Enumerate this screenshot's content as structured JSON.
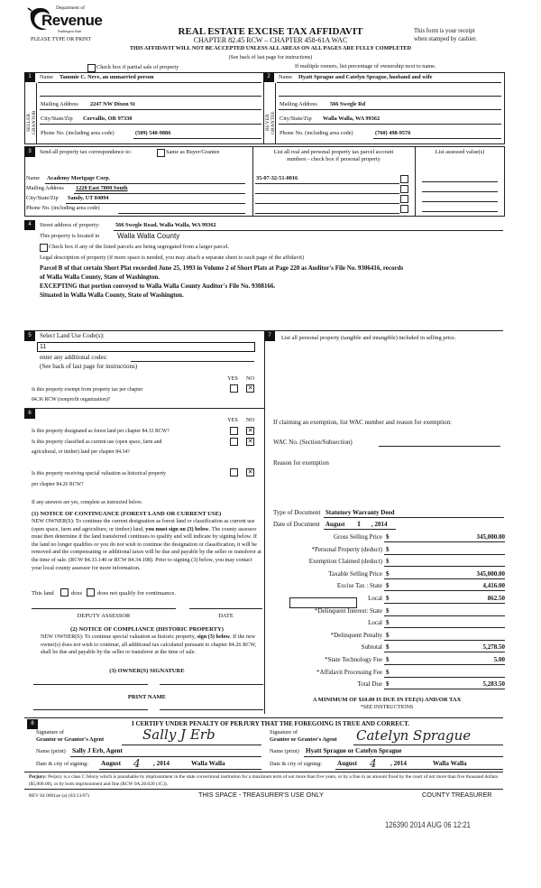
{
  "header": {
    "dept": "Department of",
    "logo_word": "Revenue",
    "logo_tag": "Washington State",
    "please": "PLEASE TYPE OR PRINT",
    "title": "REAL ESTATE EXCISE TAX AFFIDAVIT",
    "chapter": "CHAPTER 82.45 RCW – CHAPTER 458-61A WAC",
    "warning": "THIS AFFIDAVIT WILL NOT BE ACCEPTED UNLESS ALL AREAS ON ALL PAGES ARE FULLY COMPLETED",
    "see_back": "(See back of last page for instructions)",
    "receipt1": "This form is your receipt",
    "receipt2": "when stamped by cashier.",
    "partial_sale": "Check box if partial sale of property",
    "multiple_owners": "If multiple owners, list percentage of ownership next to name."
  },
  "seller": {
    "num": "1",
    "side": "SELLER GRANTOR",
    "name_label": "Name",
    "name": "Tammie C. Neve, an unmarried person",
    "mail_label": "Mailing Address",
    "mail": "2247 NW Dixon St",
    "city_label": "City/State/Zip",
    "city": "Corvallis, OR  97330",
    "phone_label": "Phone No. (including area code)",
    "phone": "(509) 540-9886"
  },
  "buyer": {
    "num": "2",
    "side": "BUYER GRANTEE",
    "name_label": "Name",
    "name": "Hyatt Sprague and Catelyn Sprague, husband and wife",
    "mail_label": "Mailing Address",
    "mail": "566 Swegle Rd",
    "city_label": "City/State/Zip",
    "city": "Walla Walla, WA  99362",
    "phone_label": "Phone No. (including area code)",
    "phone": "(760) 498-9576"
  },
  "correspondence": {
    "num": "3",
    "label": "Send all property tax correspondence to:",
    "same_as": "Same as Buyer/Grantee",
    "name_label": "Name",
    "name": "Academy Mortgage Corp.",
    "mail_label": "Mailing Address",
    "mail": "1220 East 7800 South",
    "city_label": "City/State/Zip",
    "city": "Sandy, UT  84094",
    "phone_label": "Phone No. (including area code)",
    "parcels_header1": "List all real and personal property tax parcel account",
    "parcels_header2": "numbers - check box if personal property",
    "parcels": [
      "35-07-32-51-0016"
    ],
    "assessed_header": "List assessed value(s)"
  },
  "property": {
    "num": "4",
    "street_label": "Street address of property:",
    "street": "566 Swegle Road, Walla Walla, WA  99362",
    "located_label": "This property is located in",
    "county": "Walla Walla County",
    "segregated": "Check box if any of the listed parcels are being segregated from a larger parcel.",
    "legal_label": "Legal description of property (if more space is needed, you may attach a separate sheet to each page of the affidavit)",
    "legal": [
      "Parcel B of that certain Short Plat recorded June 25, 1993 in Volume 2 of Short Plats at Page 220 as Auditor's File No. 9306416, records",
      "of Walla Walla County, State of Washington.",
      "EXCEPTING that portion conveyed to Walla Walla County Auditor's File No. 9308166.",
      "Situated in Walla Walla County, State of Washington."
    ]
  },
  "land_use": {
    "num": "5",
    "label": "Select Land Use Code(s):",
    "code": "11",
    "additional": "enter any additional codes:",
    "see_back": "(See back of last page for instructions)",
    "yes": "YES",
    "no": "NO",
    "q1a": "Is this property exempt from property tax per chapter",
    "q1b": "84.36 RCW (nonprofit organization)?",
    "q1_answer": "no"
  },
  "section6": {
    "num": "6",
    "yes": "YES",
    "no": "NO",
    "q1": "Is this property designated as forest land per chapter 84.33 RCW?",
    "q2a": "Is this property classified as current use (open space, farm and",
    "q2b": "agricultural, or timber) land per chapter 84.34?",
    "q3a": "Is this property receiving special valuation as historical property",
    "q3b": "per chapter 84.26 RCW?",
    "answers": [
      "no",
      "no",
      "no"
    ],
    "if_yes": "If any answers are yes, complete as instructed below."
  },
  "notice1": {
    "title": "(1) NOTICE OF CONTINUANCE (FOREST LAND OR CURRENT USE)",
    "body_a": "NEW OWNER(S): To continue the current designation as forest land or classification as current use (open space, farm and agriculture, or timber) land, ",
    "body_bold": "you must sign on (3) below",
    "body_b": ". The county assessor must then determine if the land transferred continues to qualify and will indicate by signing below. If the land no longer qualifies or you do not wish to continue the designation or classification, it will be removed and the compensating or additional taxes will be due and payable by the seller or transferor at the time of sale. (RCW 84.33.140 or RCW 84.34.108). Prior to signing (3) below, you may contact your local county assessor for more information.",
    "this_land": "This land",
    "does": "does",
    "does_not": "does not  qualify for continuance.",
    "deputy": "DEPUTY ASSESSOR",
    "date": "DATE"
  },
  "notice2": {
    "title": "(2) NOTICE OF COMPLIANCE (HISTORIC PROPERTY)",
    "body_a": "NEW OWNER(S): To continue special valuation as historic property, ",
    "body_bold": "sign (3) below",
    "body_b": ". If the new owner(s) does not wish to continue, all additional tax calculated pursuant to chapter 84.26 RCW, shall be due and payable by the seller or transferor at the time of sale.",
    "owner_sig": "(3) OWNER(S) SIGNATURE",
    "print_name": "PRINT NAME"
  },
  "section7": {
    "num": "7",
    "text": "List all personal property (tangible and intangible) included in selling price."
  },
  "exemption": {
    "heading": "If claiming an exemption, list WAC number and reason for exemption:",
    "wac_label": "WAC No. (Section/Subsection)",
    "reason_label": "Reason for exemption"
  },
  "document": {
    "type_label": "Type of Document",
    "type": "Statutory Warranty Deed",
    "date_label": "Date of Document",
    "date_month": "August",
    "date_day": "1",
    "date_year": ", 2014",
    "amounts": [
      {
        "label": "Gross Selling Price",
        "value": "345,000.00"
      },
      {
        "label": "*Personal Property (deduct)",
        "value": ""
      },
      {
        "label": "Exemption Claimed (deduct)",
        "value": ""
      },
      {
        "label": "Taxable Selling Price",
        "value": "345,000.00"
      },
      {
        "label": "Excise Tax : State",
        "value": "4,416.00"
      },
      {
        "label": "Local",
        "value": "862.50"
      },
      {
        "label": "*Delinquent Interest:  State",
        "value": ""
      },
      {
        "label": "Local",
        "value": ""
      },
      {
        "label": "*Delinquent Penalty",
        "value": ""
      },
      {
        "label": "Subtotal",
        "value": "5,278.50"
      },
      {
        "label": "*State Technology Fee",
        "value": "5.00"
      },
      {
        "label": "*Affidavit Processing Fee",
        "value": ""
      },
      {
        "label": "Total Due",
        "value": "5,283.50"
      }
    ],
    "currency": "$",
    "minimum": "A MINIMUM OF $10.00 IS DUE IN FEE(S) AND/OR TAX",
    "see_instructions": "*SEE INSTRUCTIONS"
  },
  "section8": {
    "num": "8",
    "certify": "I CERTIFY UNDER PENALTY OF PERJURY THAT THE FOREGOING IS TRUE AND CORRECT.",
    "sig_of": "Signature of",
    "grantor_label": "Grantor or Grantor's Agent",
    "grantor_signature": "Sally J Erb",
    "grantee_label": "Grantee or Grantee's Agent",
    "grantee_signature": "Catelyn Sprague",
    "name_label": "Name (print)",
    "grantor_name": "Sally J Erb, Agent",
    "grantee_name": "Hyatt Sprague or Catelyn Sprague",
    "date_label": "Date & city of signing:",
    "grantor_month": "August",
    "grantor_day": "4",
    "grantor_year": ", 2014",
    "grantor_city": "Walla Walla",
    "grantee_month": "August",
    "grantee_day": "4",
    "grantee_year": ", 2014",
    "grantee_city": "Walla Walla"
  },
  "footer": {
    "perjury_label": "Perjury:",
    "perjury_text": " Perjury is a class C felony which is punishable by imprisonment in the state correctional institution for a maximum term of not more than five years, or by a fine in an amount fixed by the court of not more than five thousand dollars ($5,000.00), or by both imprisonment and fine (RCW 9A.20.020 (1C)).",
    "rev": "REV 84 0001ae (a) (03/13/07)",
    "treasurer_space": "THIS SPACE - TREASURER'S USE ONLY",
    "county_treasurer": "COUNTY TREASURER",
    "stamp": "126390 2014 AUG 06 12:21"
  }
}
